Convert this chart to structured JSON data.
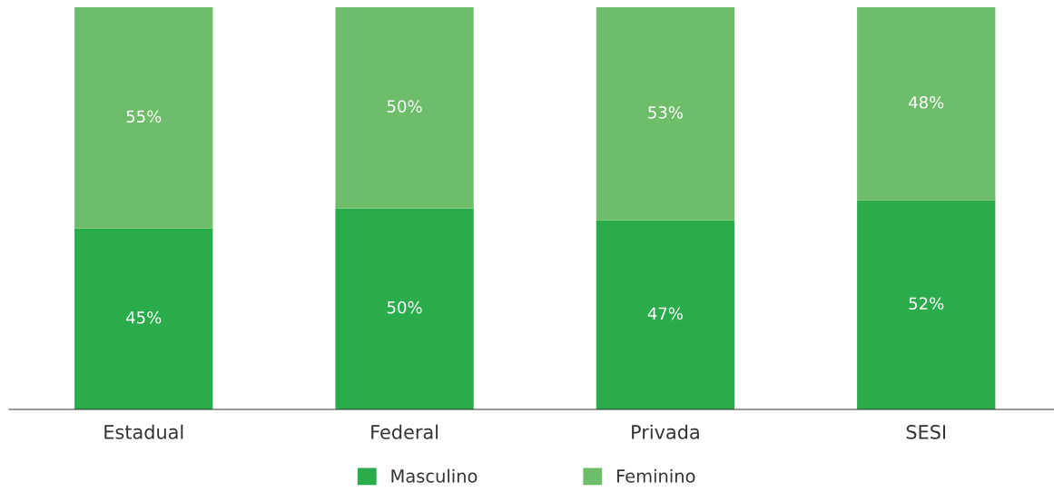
{
  "chart_data": {
    "type": "bar",
    "stacked": true,
    "legend": "bottom",
    "grid": false,
    "tick_labels": "x",
    "categories": [
      "Estadual",
      "Federal",
      "Privada",
      "SESI"
    ],
    "series": [
      {
        "name": "Masculino",
        "color": "#2aac4c",
        "values": [
          45,
          50,
          47,
          52
        ],
        "value_labels": [
          "45%",
          "50%",
          "47%",
          "52%"
        ]
      },
      {
        "name": "Feminino",
        "color": "#6dbd6a",
        "values": [
          55,
          50,
          53,
          48
        ],
        "value_labels": [
          "55%",
          "50%",
          "53%",
          "48%"
        ]
      }
    ]
  }
}
